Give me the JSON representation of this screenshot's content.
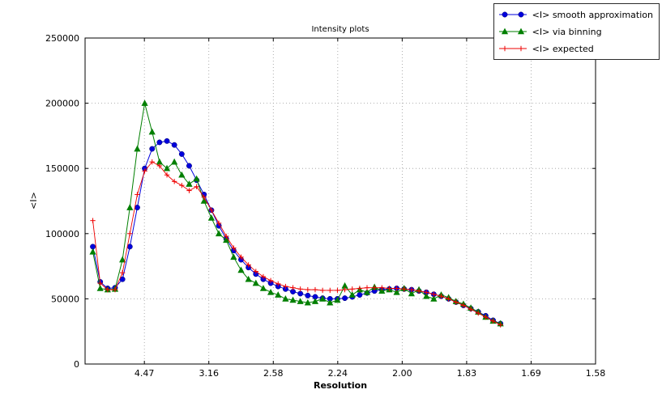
{
  "figure": {
    "title": "Intensity plots",
    "xlabel": "Resolution",
    "ylabel": "<I>"
  },
  "legend": [
    {
      "label": "<I> smooth approximation",
      "color": "#0000dd",
      "marker": "circle"
    },
    {
      "label": "<I> via binning",
      "color": "#007f00",
      "marker": "triangle"
    },
    {
      "label": "<I> expected",
      "color": "#ee0000",
      "marker": "plus"
    }
  ],
  "chart_data": {
    "type": "line",
    "title": "Intensity plots",
    "xlabel": "Resolution",
    "ylabel": "<I>",
    "grid": true,
    "legend_position": "upper right, outside plot top-right",
    "x_axis": {
      "note": "x spacing is linear in 1/d^2; tick labels show resolution d",
      "range": [
        0.004,
        0.4
      ],
      "ticks": [
        {
          "value": 0.05,
          "label": "4.47"
        },
        {
          "value": 0.1,
          "label": "3.16"
        },
        {
          "value": 0.15,
          "label": "2.58"
        },
        {
          "value": 0.2,
          "label": "2.24"
        },
        {
          "value": 0.25,
          "label": "2.00"
        },
        {
          "value": 0.3,
          "label": "1.83"
        },
        {
          "value": 0.35,
          "label": "1.69"
        },
        {
          "value": 0.4,
          "label": "1.58"
        }
      ]
    },
    "ylim": [
      0,
      250000
    ],
    "yticks": [
      0,
      50000,
      100000,
      150000,
      200000,
      250000
    ],
    "x": [
      0.01,
      0.01575,
      0.0215,
      0.02725,
      0.033,
      0.03875,
      0.0445,
      0.05025,
      0.056,
      0.06175,
      0.0675,
      0.07325,
      0.079,
      0.08475,
      0.0905,
      0.09625,
      0.102,
      0.10775,
      0.1135,
      0.11925,
      0.125,
      0.13075,
      0.1365,
      0.14225,
      0.148,
      0.15375,
      0.1595,
      0.16525,
      0.171,
      0.17675,
      0.1825,
      0.18825,
      0.194,
      0.19975,
      0.2055,
      0.21125,
      0.217,
      0.22275,
      0.2285,
      0.23425,
      0.24,
      0.24575,
      0.2515,
      0.25725,
      0.263,
      0.26875,
      0.2745,
      0.28025,
      0.286,
      0.29175,
      0.2975,
      0.30325,
      0.309,
      0.31475,
      0.3205,
      0.32625
    ],
    "series": [
      {
        "name": "<I> smooth approximation",
        "color": "#0000dd",
        "marker": "circle",
        "values": [
          90000,
          63000,
          58000,
          58500,
          65000,
          90000,
          120000,
          150000,
          165000,
          170000,
          171000,
          168000,
          161000,
          152000,
          141000,
          130000,
          118000,
          106000,
          96000,
          87000,
          80000,
          74000,
          69000,
          65000,
          62000,
          59500,
          57500,
          55500,
          54000,
          52500,
          51500,
          50500,
          50000,
          50000,
          50500,
          51500,
          53000,
          54500,
          56000,
          57000,
          57500,
          58000,
          57500,
          57000,
          56000,
          55000,
          53500,
          52000,
          50000,
          47500,
          45000,
          42500,
          40000,
          37000,
          33500,
          31000
        ]
      },
      {
        "name": "<I> via binning",
        "color": "#007f00",
        "marker": "triangle",
        "values": [
          86000,
          58000,
          57000,
          57500,
          80000,
          120000,
          165000,
          200000,
          178000,
          155000,
          150000,
          155000,
          145000,
          138000,
          142000,
          125000,
          112000,
          100000,
          95000,
          82000,
          72000,
          65000,
          62000,
          58000,
          55000,
          53000,
          50000,
          49000,
          48000,
          47000,
          48000,
          50000,
          47000,
          49000,
          60000,
          53000,
          57000,
          55000,
          59000,
          56000,
          57000,
          55000,
          58000,
          54000,
          57000,
          52000,
          50000,
          53000,
          51000,
          48000,
          46000,
          43000,
          40000,
          36000,
          33000,
          31000
        ]
      },
      {
        "name": "<I> expected",
        "color": "#ee0000",
        "marker": "plus",
        "values": [
          110000,
          62000,
          57000,
          57000,
          70000,
          100000,
          130000,
          148000,
          155000,
          152000,
          145000,
          140000,
          137000,
          133000,
          136000,
          128000,
          118000,
          108000,
          98000,
          89000,
          82000,
          76000,
          71000,
          67000,
          64000,
          61500,
          59500,
          58500,
          57500,
          57000,
          57000,
          56500,
          56500,
          56500,
          57000,
          57500,
          58000,
          58500,
          58500,
          58500,
          58000,
          58000,
          57500,
          57000,
          56000,
          55000,
          53500,
          52000,
          50000,
          47500,
          45000,
          42000,
          39000,
          36000,
          33000,
          30000
        ]
      }
    ]
  }
}
